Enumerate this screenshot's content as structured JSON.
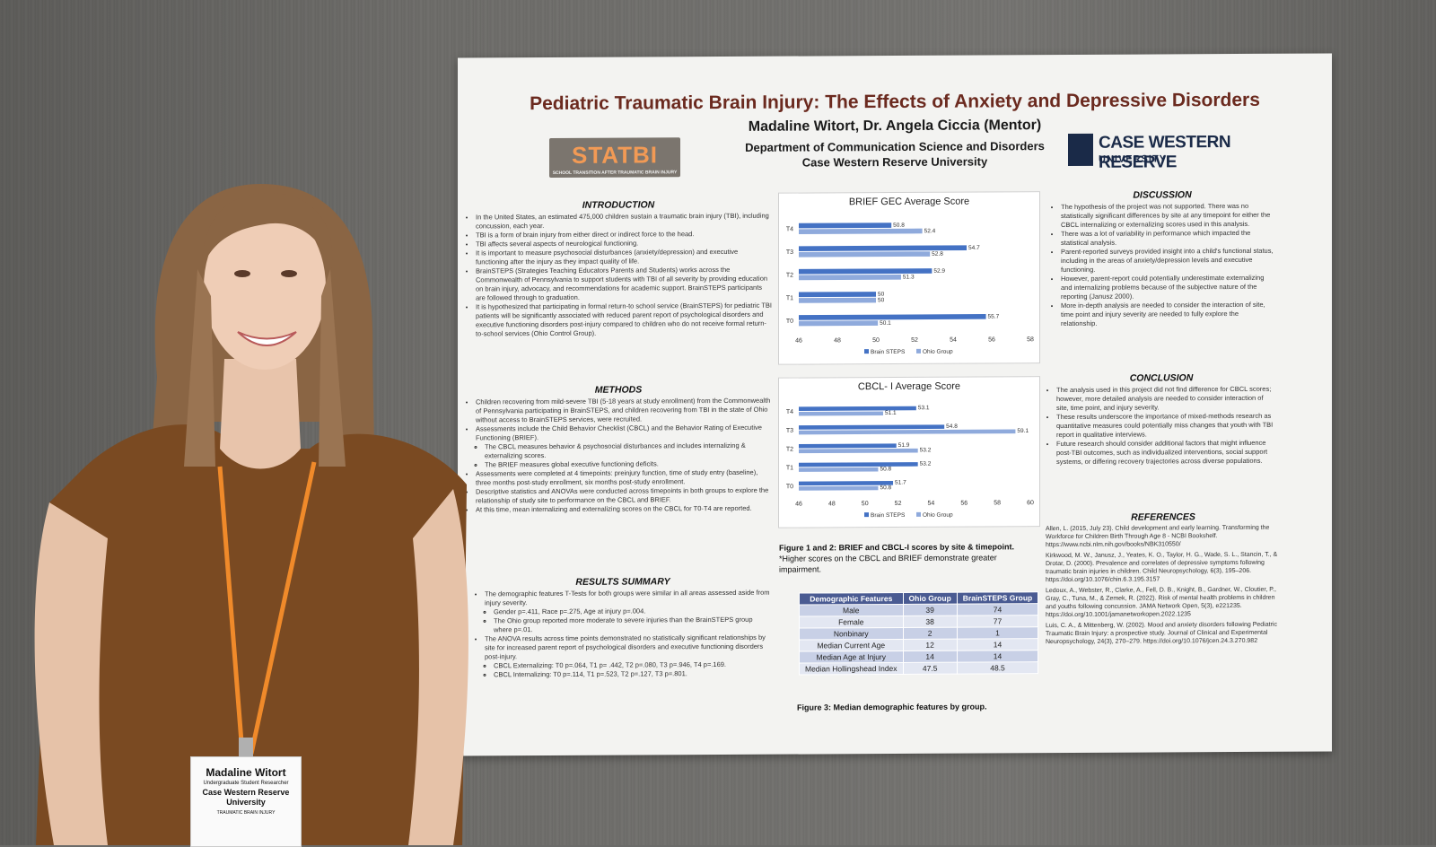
{
  "poster": {
    "title": "Pediatric Traumatic Brain Injury: The Effects of Anxiety and Depressive Disorders",
    "authors": "Madaline Witort, Dr. Angela Ciccia (Mentor)",
    "department": "Department of Communication Science and Disorders",
    "university": "Case Western Reserve University",
    "logo_left": {
      "text": "STATBI",
      "tagline": "SCHOOL TRANSITION AFTER TRAUMATIC BRAIN INJURY"
    },
    "logo_right": {
      "line1": "CASE WESTERN RESERVE",
      "line2": "UNIVERSITY"
    },
    "introduction": {
      "heading": "INTRODUCTION",
      "items": [
        "In the United States, an estimated 475,000 children sustain a traumatic brain injury (TBI), including concussion, each year.",
        "TBI is a form of brain injury from either direct or indirect force to the head.",
        "TBI affects several aspects of neurological functioning.",
        " It is important to measure psychosocial disturbances (anxiety/depression) and executive functioning after the injury as they impact quality of life.",
        "BrainSTEPS (Strategies Teaching Educators Parents and Students) works across the Commonwealth of Pennsylvania to support students with TBI of all severity by providing education on brain injury, advocacy, and recommendations for academic support. BrainSTEPS participants are followed through to graduation.",
        "It is hypothesized that participating in formal return-to school service (BrainSTEPS) for pediatric TBI patients will be significantly associated with reduced parent report of psychological disorders and executive functioning disorders post-injury compared to children who do not receive formal return-to-school services (Ohio Control Group)."
      ]
    },
    "methods": {
      "heading": "METHODS",
      "items": [
        {
          "t": "Children recovering from mild-severe TBI (5-18 years at study enrollment) from the Commonwealth of Pennsylvania participating in BrainSTEPS, and children recovering from TBI in the state of Ohio without access to BrainSTEPS services, were recruited.",
          "sub": false
        },
        {
          "t": "Assessments include the Child Behavior Checklist (CBCL) and the Behavior Rating of Executive Functioning (BRIEF).",
          "sub": false
        },
        {
          "t": "The CBCL measures behavior & psychosocial disturbances and includes internalizing & externalizing scores.",
          "sub": true
        },
        {
          "t": "The BRIEF measures global executive functioning deficits.",
          "sub": true
        },
        {
          "t": "Assessments were completed at 4 timepoints: preinjury function, time of study entry (baseline), three months post-study enrollment, six months post-study enrollment.",
          "sub": false
        },
        {
          "t": "Descriptive statistics and ANOVAs were conducted across timepoints in both groups to explore the relationship of study site to performance on the CBCL and BRIEF.",
          "sub": false
        },
        {
          "t": "At this time, mean internalizing and externalizing scores on the CBCL for T0-T4 are reported.",
          "sub": false
        }
      ]
    },
    "results": {
      "heading": "RESULTS SUMMARY",
      "items": [
        {
          "t": "The demographic features T-Tests for both groups were similar in all areas assessed aside from injury severity.",
          "sub": false
        },
        {
          "t": "Gender p=.411, Race p=.275, Age at injury p=.004.",
          "sub": true
        },
        {
          "t": "The Ohio group reported more moderate to severe injuries than the BrainSTEPS group where p=.01.",
          "sub": true
        },
        {
          "t": "The ANOVA results across time points demonstrated no statistically significant relationships by site for increased parent report of psychological disorders and executive functioning disorders post-injury.",
          "sub": false
        },
        {
          "t": "CBCL Externalizing: T0 p=.064, T1 p= .442, T2 p=.080, T3 p=.946, T4 p=.169.",
          "sub": true
        },
        {
          "t": "CBCL Internalizing: T0 p=.114, T1 p=.523, T2 p=.127, T3 p=.801.",
          "sub": true
        }
      ]
    },
    "discussion": {
      "heading": "DISCUSSION",
      "items": [
        "The hypothesis of the project was not supported. There was no statistically significant differences by site at any timepoint for either the CBCL internalizing or externalizing scores used in this analysis.",
        "There was a lot of variability in performance which impacted the statistical analysis.",
        "Parent-reported surveys provided insight into a child's functional status, including in the areas of anxiety/depression levels and executive functioning.",
        "However, parent-report could potentially underestimate externalizing and internalizing problems because of the subjective nature of the reporting (Janusz 2000).",
        "More in-depth analysis are needed to consider the interaction of site, time point and injury severity are needed to fully explore the relationship."
      ]
    },
    "conclusion": {
      "heading": "CONCLUSION",
      "items": [
        "The analysis used in this project did not find difference for CBCL scores; however, more detailed analysis are needed to consider interaction of site, time point, and injury severity.",
        "These results underscore the importance of mixed-methods research as quantitative measures could potentially miss changes that youth with TBI report in qualitative interviews.",
        "Future research should consider additional factors that might influence post-TBI outcomes, such as individualized interventions, social support systems, or differing recovery trajectories across diverse populations."
      ]
    },
    "references": {
      "heading": "REFERENCES",
      "items": [
        "Allen, L. (2015, July 23). Child development and early learning. Transforming the Workforce for Children Birth Through Age 8 - NCBI Bookshelf. https://www.ncbi.nlm.nih.gov/books/NBK310550/",
        "Kirkwood, M. W., Janusz, J., Yeates, K. O., Taylor, H. G., Wade, S. L., Stancin, T., & Drotar, D. (2000). Prevalence and correlates of depressive symptoms following traumatic brain injuries in children. Child Neuropsychology, 6(3), 195–206. https://doi.org/10.1076/chin.6.3.195.3157",
        "Ledoux, A., Webster, R., Clarke, A., Fell, D. B., Knight, B., Gardner, W., Cloutier, P., Gray, C., Tuna, M., & Zemek, R. (2022). Risk of mental health problems in children and youths following concussion. JAMA Network Open, 5(3), e221235. https://doi.org/10.1001/jamanetworkopen.2022.1235",
        "Luis, C. A., & Mittenberg, W. (2002). Mood and anxiety disorders following Pediatric Traumatic Brain Injury: a prospective study. Journal of Clinical and Experimental Neuropsychology, 24(3), 270–279. https://doi.org/10.1076/jcen.24.3.270.982"
      ]
    },
    "figure_caption_1": "Figure 1 and 2: BRIEF and CBCL-I scores by site & timepoint.",
    "figure_caption_2": "*Higher scores on the CBCL and BRIEF demonstrate greater impairment.",
    "figure_caption_3": "Figure 3: Median demographic features by group.",
    "demographics": {
      "headers": [
        "Demographic Features",
        "Ohio Group",
        "BrainSTEPS Group"
      ],
      "rows": [
        [
          "Male",
          "39",
          "74"
        ],
        [
          "Female",
          "38",
          "77"
        ],
        [
          "Nonbinary",
          "2",
          "1"
        ],
        [
          "Median Current Age",
          "12",
          "14"
        ],
        [
          "Median Age at Injury",
          "14",
          "14"
        ],
        [
          "Median Hollingshead Index",
          "47.5",
          "48.5"
        ]
      ]
    }
  },
  "chart_data": [
    {
      "type": "bar",
      "orientation": "horizontal",
      "title": "BRIEF GEC Average Score",
      "categories": [
        "T4",
        "T3",
        "T2",
        "T1",
        "T0"
      ],
      "series": [
        {
          "name": "Brain STEPS",
          "values": [
            50.8,
            54.7,
            52.9,
            50,
            55.7
          ],
          "color": "#4472c4"
        },
        {
          "name": "Ohio Group",
          "values": [
            52.4,
            52.8,
            51.3,
            50,
            50.1
          ],
          "color": "#8faadc"
        }
      ],
      "xlim": [
        46,
        58
      ],
      "xticks": [
        46,
        48,
        50,
        52,
        54,
        56,
        58
      ],
      "legend": "bottom"
    },
    {
      "type": "bar",
      "orientation": "horizontal",
      "title": "CBCL- I Average Score",
      "categories": [
        "T4",
        "T3",
        "T2",
        "T1",
        "T0"
      ],
      "series": [
        {
          "name": "Brain STEPS",
          "values": [
            53.1,
            54.8,
            51.9,
            53.2,
            51.7
          ],
          "color": "#4472c4"
        },
        {
          "name": "Ohio Group",
          "values": [
            51.1,
            59.1,
            53.2,
            50.8,
            50.8
          ],
          "color": "#8faadc"
        }
      ],
      "xlim": [
        46,
        60
      ],
      "xticks": [
        46,
        48,
        50,
        52,
        54,
        56,
        58,
        60
      ],
      "legend": "bottom"
    }
  ],
  "badge": {
    "name": "Madaline Witort",
    "role": "Undergraduate Student Researcher",
    "university": "Case Western Reserve University",
    "logo": "TRAUMATIC BRAIN INJURY"
  },
  "colors": {
    "title": "#6b2a1f",
    "table_header": "#4a5b92",
    "bar_dark": "#4472c4",
    "bar_light": "#8faadc",
    "shirt": "#7a4a22",
    "lanyard": "#f08a2a"
  }
}
